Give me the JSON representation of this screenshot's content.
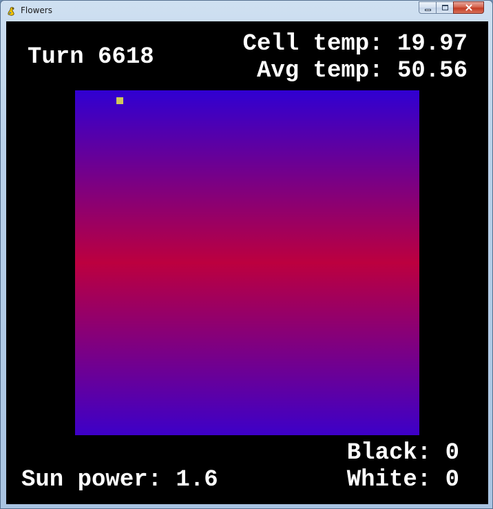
{
  "window": {
    "title": "Flowers",
    "icon": "pygame-snake-icon",
    "controls": {
      "minimize_icon": "minimize-icon",
      "maximize_icon": "maximize-icon",
      "close_icon": "close-icon"
    }
  },
  "hud": {
    "turn": "Turn 6618",
    "cell_temp": "Cell temp: 19.97",
    "avg_temp": "Avg temp: 50.56",
    "black": "Black: 0",
    "white": "White: 0",
    "sun_power": "Sun power: 1.6"
  },
  "field": {
    "gradient_colors": {
      "top": "#3000d2",
      "middle": "#bc003f",
      "bottom": "#3d00c8"
    },
    "cursor_color": "#d0c85a",
    "cursor_cell": {
      "col": 6,
      "row": 1
    },
    "grid_size": 50
  }
}
